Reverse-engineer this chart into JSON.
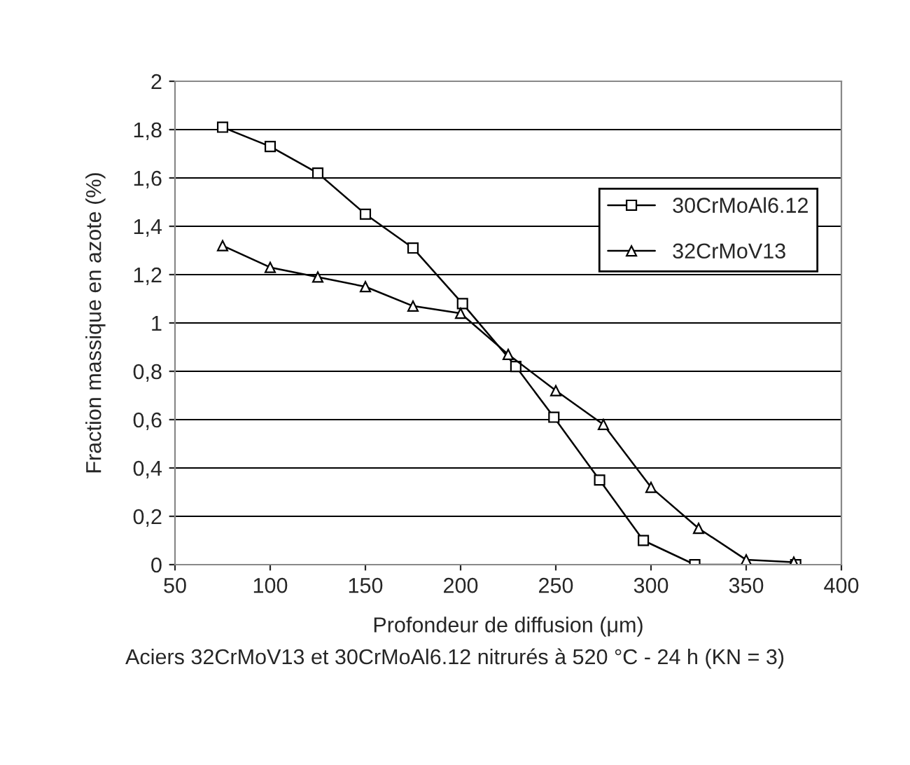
{
  "chart_data": {
    "type": "line",
    "xlabel": "Profondeur de diffusion (μm)",
    "ylabel": "Fraction massique en azote (%)",
    "annotations": [
      "Aciers 32CrMoV13 et 30CrMoAl6.12 nitrurés à 520 °C - 24 h (KN = 3)"
    ],
    "series": [
      {
        "name": "30CrMoAl6.12",
        "color": "#000000",
        "marker": "square",
        "x": [
          75,
          100,
          125,
          150,
          175,
          201,
          229,
          249,
          273,
          296,
          323,
          376
        ],
        "values": [
          1.81,
          1.73,
          1.62,
          1.45,
          1.31,
          1.08,
          0.82,
          0.61,
          0.35,
          0.1,
          0,
          0
        ]
      },
      {
        "name": "32CrMoV13",
        "color": "#000000",
        "marker": "triangle",
        "x": [
          75,
          100,
          125,
          150,
          175,
          200,
          225,
          250,
          275,
          300,
          325,
          350,
          375
        ],
        "values": [
          1.32,
          1.23,
          1.19,
          1.15,
          1.07,
          1.04,
          0.87,
          0.72,
          0.58,
          0.32,
          0.15,
          0.02,
          0.01
        ]
      }
    ],
    "xlim": [
      50,
      400
    ],
    "xticks": [
      50,
      100,
      150,
      200,
      250,
      300,
      350,
      400
    ],
    "ylim": [
      0,
      2
    ],
    "yticks": [
      0,
      {
        "value": 0.2,
        "label": "0,2"
      },
      {
        "value": 0.4,
        "label": "0,4"
      },
      {
        "value": 0.6,
        "label": "0,6"
      },
      {
        "value": 0.8,
        "label": "0,8"
      },
      1,
      {
        "value": 1.2,
        "label": "1,2"
      },
      {
        "value": 1.4,
        "label": "1,4"
      },
      {
        "value": 1.6,
        "label": "1,6"
      },
      {
        "value": 1.8,
        "label": "1,8"
      },
      2
    ],
    "grid": "y",
    "legend": "top right",
    "line_style": "solid"
  }
}
